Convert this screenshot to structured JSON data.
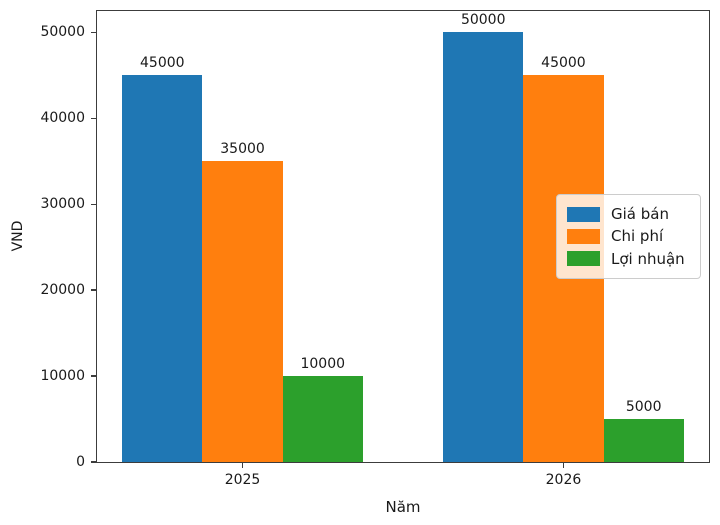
{
  "chart_data": {
    "type": "bar",
    "categories": [
      "2025",
      "2026"
    ],
    "series": [
      {
        "name": "Giá bán",
        "color": "#1f77b4",
        "values": [
          45000,
          50000
        ]
      },
      {
        "name": "Chi phí",
        "color": "#ff7f0e",
        "values": [
          35000,
          45000
        ]
      },
      {
        "name": "Lợi nhuận",
        "color": "#2ca02c",
        "values": [
          10000,
          5000
        ]
      }
    ],
    "bar_value_labels": [
      [
        "45000",
        "50000"
      ],
      [
        "35000",
        "45000"
      ],
      [
        "10000",
        "5000"
      ]
    ],
    "title": "",
    "xlabel": "Năm",
    "ylabel": "VND",
    "ylim": [
      0,
      52500
    ],
    "yticks": [
      0,
      10000,
      20000,
      30000,
      40000,
      50000
    ],
    "ytick_labels": [
      "0",
      "10000",
      "20000",
      "30000",
      "40000",
      "50000"
    ],
    "grid": false,
    "legend_position": "center-right",
    "bar_width_data_units": 0.25,
    "axis_color": "#3c3c3c",
    "background_color": "#ffffff"
  }
}
